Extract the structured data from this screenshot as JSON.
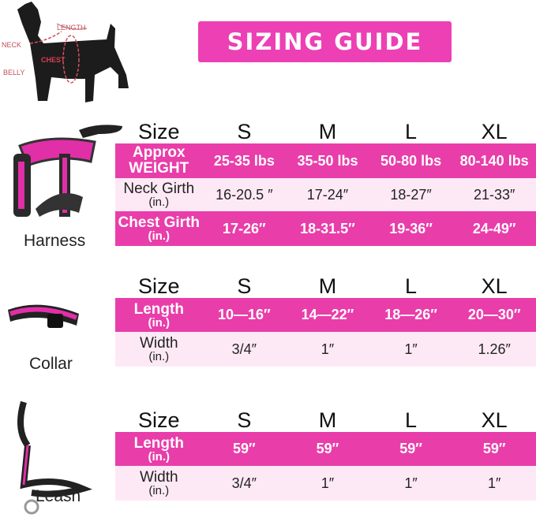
{
  "title": "SIZING GUIDE",
  "diagram": {
    "labels": [
      "LENGTH",
      "NECK",
      "CHEST",
      "BELLY"
    ]
  },
  "colors": {
    "accent": "#e93daa",
    "light_row": "#fde9f5",
    "title_bg": "#ec40b4"
  },
  "sizes": [
    "S",
    "M",
    "L",
    "XL"
  ],
  "size_header": "Size",
  "harness": {
    "label": "Harness",
    "rows": [
      {
        "label": "Approx",
        "label2": "WEIGHT",
        "unit": "",
        "values": [
          "25-35 lbs",
          "35-50 lbs",
          "50-80 lbs",
          "80-140 lbs"
        ]
      },
      {
        "label": "Neck Girth",
        "label2": "",
        "unit": "(in.)",
        "values": [
          "16-20.5 ″",
          "17-24″",
          "18-27″",
          "21-33″"
        ]
      },
      {
        "label": "Chest Girth",
        "label2": "",
        "unit": "(in.)",
        "values": [
          "17-26″",
          "18-31.5″",
          "19-36″",
          "24-49″"
        ]
      }
    ]
  },
  "collar": {
    "label": "Collar",
    "rows": [
      {
        "label": "Length",
        "unit": "(in.)",
        "values": [
          "10—16″",
          "14—22″",
          "18—26″",
          "20—30″"
        ]
      },
      {
        "label": "Width",
        "unit": "(in.)",
        "values": [
          "3/4″",
          "1″",
          "1″",
          "1.26″"
        ]
      }
    ]
  },
  "leash": {
    "label": "Leash",
    "rows": [
      {
        "label": "Length",
        "unit": "(in.)",
        "values": [
          "59″",
          "59″",
          "59″",
          "59″"
        ]
      },
      {
        "label": "Width",
        "unit": "(in.)",
        "values": [
          "3/4″",
          "1″",
          "1″",
          "1″"
        ]
      }
    ]
  }
}
